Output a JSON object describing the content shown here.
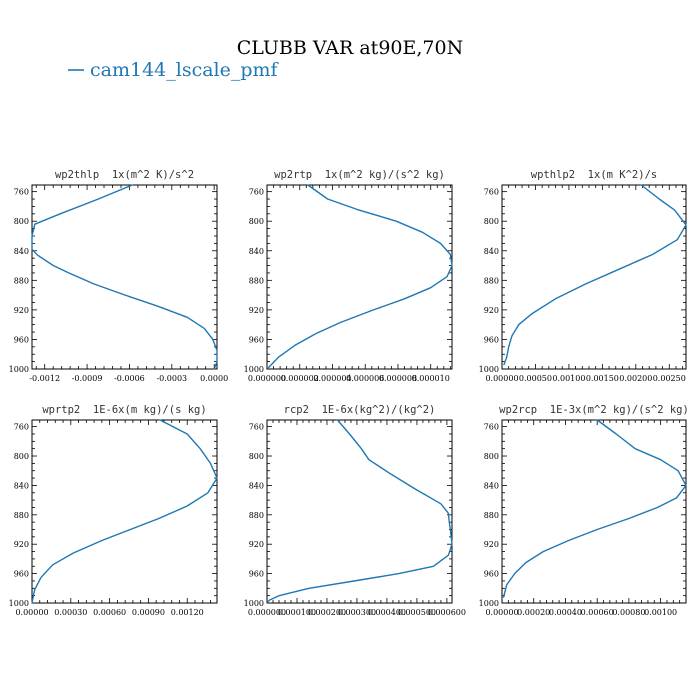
{
  "title": "CLUBB VAR at90E,70N",
  "legend": {
    "label": "cam144_lscale_pmf",
    "color": "#1f77b4"
  },
  "chart_data": [
    {
      "type": "line",
      "title": "wp2thlp  1x(m^2 K)/s^2",
      "xticks": [
        "-0.0012",
        "-0.0009",
        "-0.0006",
        "-0.0003",
        "0.0000"
      ],
      "xtick_values": [
        -0.0012,
        -0.0009,
        -0.0006,
        -0.0003,
        0.0
      ],
      "xlim": [
        -0.00129,
        2e-05
      ],
      "ylim": [
        1000,
        751
      ],
      "yticks": [
        760,
        800,
        840,
        880,
        920,
        960,
        1000
      ],
      "series": [
        {
          "name": "cam144_lscale_pmf",
          "x": [
            -0.00058,
            -0.00082,
            -0.00109,
            -0.00127,
            -0.00129,
            -0.00129,
            -0.00125,
            -0.00114,
            -0.00103,
            -0.00085,
            -0.00063,
            -0.0004,
            -0.00019,
            -7e-05,
            -1e-05,
            2e-05,
            2e-05,
            0.0
          ],
          "y": [
            751,
            770,
            790,
            804,
            820,
            838,
            846,
            860,
            870,
            885,
            900,
            915,
            930,
            945,
            960,
            975,
            990,
            1000
          ]
        }
      ]
    },
    {
      "type": "line",
      "title": "wp2rtp  1x(m^2 kg)/(s^2 kg)",
      "xticks": [
        "0.000000",
        "0.000002",
        "0.000004",
        "0.000006",
        "0.000008",
        "0.000010"
      ],
      "xtick_values": [
        0.0,
        2e-06,
        4e-06,
        6e-06,
        8e-06,
        1e-05
      ],
      "xlim": [
        0.0,
        1.13e-05
      ],
      "ylim": [
        1000,
        751
      ],
      "yticks": [
        760,
        800,
        840,
        880,
        920,
        960,
        1000
      ],
      "series": [
        {
          "name": "cam144_lscale_pmf",
          "x": [
            2.5e-06,
            3.7e-06,
            5.5e-06,
            7.9e-06,
            9.5e-06,
            1.06e-05,
            1.12e-05,
            1.13e-05,
            1.1e-05,
            1e-05,
            8.4e-06,
            6.5e-06,
            4.5e-06,
            3e-06,
            1.7e-06,
            7e-07,
            1e-07
          ],
          "y": [
            751,
            770,
            784,
            800,
            815,
            830,
            845,
            860,
            875,
            890,
            905,
            920,
            937,
            952,
            968,
            984,
            998
          ]
        }
      ]
    },
    {
      "type": "line",
      "title": "wpthlp2  1x(m K^2)/s",
      "xticks": [
        "0.00000",
        "0.00050",
        "0.00100",
        "0.00150",
        "0.00200",
        "0.00250"
      ],
      "xtick_values": [
        0.0,
        0.0005,
        0.001,
        0.0015,
        0.002,
        0.0025
      ],
      "xlim": [
        0.0,
        0.00275
      ],
      "ylim": [
        1000,
        751
      ],
      "yticks": [
        760,
        800,
        840,
        880,
        920,
        960,
        1000
      ],
      "series": [
        {
          "name": "cam144_lscale_pmf",
          "x": [
            0.00208,
            0.00235,
            0.00258,
            0.00275,
            0.00262,
            0.00225,
            0.00175,
            0.00125,
            0.0008,
            0.00045,
            0.00025,
            0.00015,
            0.0001,
            7e-05,
            3e-05
          ],
          "y": [
            751,
            770,
            785,
            805,
            825,
            845,
            865,
            885,
            905,
            925,
            940,
            955,
            970,
            984,
            994
          ]
        }
      ]
    },
    {
      "type": "line",
      "title": "wprtp2  1E-6x(m kg)/(s kg)",
      "xticks": [
        "0.00000",
        "0.00030",
        "0.00060",
        "0.00090",
        "0.00120"
      ],
      "xtick_values": [
        0.0,
        0.0003,
        0.0006,
        0.0009,
        0.0012
      ],
      "xlim": [
        0.0,
        0.00143
      ],
      "ylim": [
        1000,
        751
      ],
      "yticks": [
        760,
        800,
        840,
        880,
        920,
        960,
        1000
      ],
      "series": [
        {
          "name": "cam144_lscale_pmf",
          "x": [
            0.00099,
            0.0012,
            0.0013,
            0.00138,
            0.00143,
            0.00136,
            0.0012,
            0.00098,
            0.00076,
            0.00054,
            0.00032,
            0.00016,
            7e-05,
            2e-05,
            0.0
          ],
          "y": [
            751,
            770,
            790,
            810,
            830,
            850,
            868,
            885,
            900,
            915,
            932,
            948,
            965,
            982,
            1000
          ]
        }
      ]
    },
    {
      "type": "line",
      "title": "rcp2  1E-6x(kg^2)/(kg^2)",
      "xticks": [
        "0.000000",
        "0.000100",
        "0.000200",
        "0.000300",
        "0.000400",
        "0.000500",
        "0.000600"
      ],
      "xtick_values": [
        0.0,
        0.0001,
        0.0002,
        0.0003,
        0.0004,
        0.0005,
        0.0006
      ],
      "xlim": [
        0.0,
        0.000617
      ],
      "ylim": [
        1000,
        751
      ],
      "yticks": [
        760,
        800,
        840,
        880,
        920,
        960,
        1000
      ],
      "series": [
        {
          "name": "cam144_lscale_pmf",
          "x": [
            0.000235,
            0.000275,
            0.000315,
            0.00034,
            0.000415,
            0.000495,
            0.00058,
            0.000605,
            0.000608,
            0.000613,
            0.000617,
            0.000605,
            0.000555,
            0.00044,
            0.00029,
            0.00014,
            4e-05,
            8e-06,
            1e-06
          ],
          "y": [
            751,
            770,
            790,
            805,
            825,
            845,
            865,
            878,
            890,
            905,
            920,
            935,
            950,
            960,
            970,
            980,
            990,
            996,
            999
          ]
        }
      ]
    },
    {
      "type": "line",
      "title": "wp2rcp  1E-3x(m^2 kg)/(s^2 kg)",
      "xticks": [
        "0.00000",
        "0.00020",
        "0.00040",
        "0.00060",
        "0.00080",
        "0.00100"
      ],
      "xtick_values": [
        0.0,
        0.0002,
        0.0004,
        0.0006,
        0.0008,
        0.001
      ],
      "xlim": [
        0.0,
        0.00116
      ],
      "ylim": [
        1000,
        751
      ],
      "yticks": [
        760,
        800,
        840,
        880,
        920,
        960,
        1000
      ],
      "series": [
        {
          "name": "cam144_lscale_pmf",
          "x": [
            0.0006,
            0.00072,
            0.00084,
            0.001,
            0.00111,
            0.00116,
            0.0011,
            0.00098,
            0.0008,
            0.0006,
            0.00042,
            0.00026,
            0.00015,
            8e-05,
            3e-05,
            1e-05
          ],
          "y": [
            751,
            770,
            790,
            805,
            820,
            840,
            857,
            870,
            885,
            900,
            915,
            930,
            945,
            960,
            975,
            992
          ]
        }
      ]
    }
  ]
}
